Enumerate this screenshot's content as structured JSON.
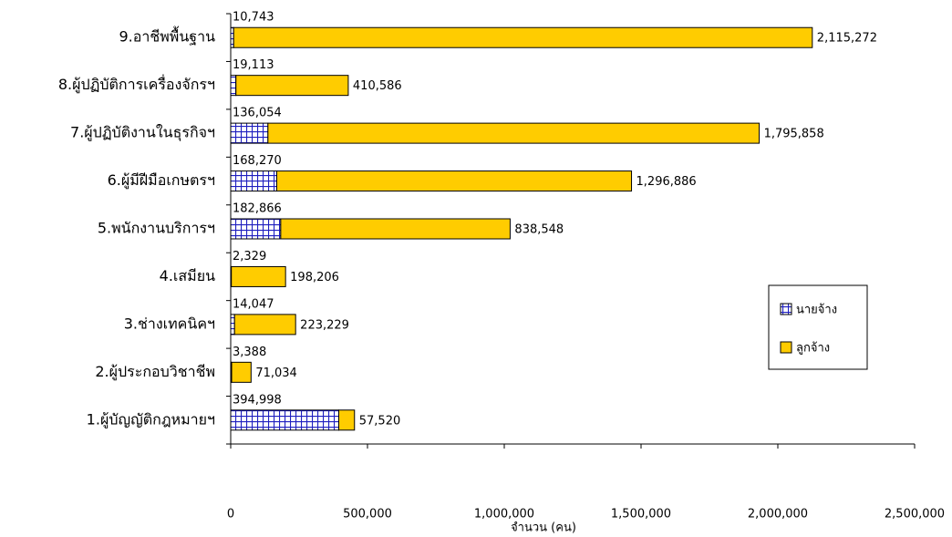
{
  "chart_data": {
    "type": "stacked-barh",
    "xlabel": "จำนวน (คน)",
    "categories": [
      "9.อาชีพพื้นฐาน",
      "8.ผู้ปฏิบัติการเครื่องจักรฯ",
      "7.ผู้ปฏิบัติงานในธุรกิจฯ",
      "6.ผู้มีฝีมือเกษตรฯ",
      "5.พนักงานบริการฯ",
      "4.เสมียน",
      "3.ช่างเทคนิคฯ",
      "2.ผู้ประกอบวิชาชีพ",
      "1.ผู้บัญญัติกฎหมายฯ"
    ],
    "series": [
      {
        "name": "นายจ้าง",
        "color": "#1f1fbf",
        "hatch": true,
        "values": [
          10743,
          19113,
          136054,
          168270,
          182866,
          2329,
          14047,
          3388,
          394998
        ],
        "value_labels": [
          "10,743",
          "19,113",
          "136,054",
          "168,270",
          "182,866",
          "2,329",
          "14,047",
          "3,388",
          "394,998"
        ]
      },
      {
        "name": "ลูกจ้าง",
        "color": "#ffcc00",
        "hatch": false,
        "values": [
          2115272,
          410586,
          1795858,
          1296886,
          838548,
          198206,
          223229,
          71034,
          57520
        ],
        "value_labels": [
          "2,115,272",
          "410,586",
          "1,795,858",
          "1,296,886",
          "838,548",
          "198,206",
          "223,229",
          "71,034",
          "57,520"
        ]
      }
    ],
    "xlim": [
      0,
      2500000
    ],
    "xticks": [
      0,
      {
        "value": 500000,
        "label": "500,000"
      },
      {
        "value": 1000000,
        "label": "1,000,000"
      },
      {
        "value": 1500000,
        "label": "1,500,000"
      },
      {
        "value": 2000000,
        "label": "2,000,000"
      },
      {
        "value": 2500000,
        "label": "2,500,000"
      }
    ],
    "legend": "right"
  }
}
